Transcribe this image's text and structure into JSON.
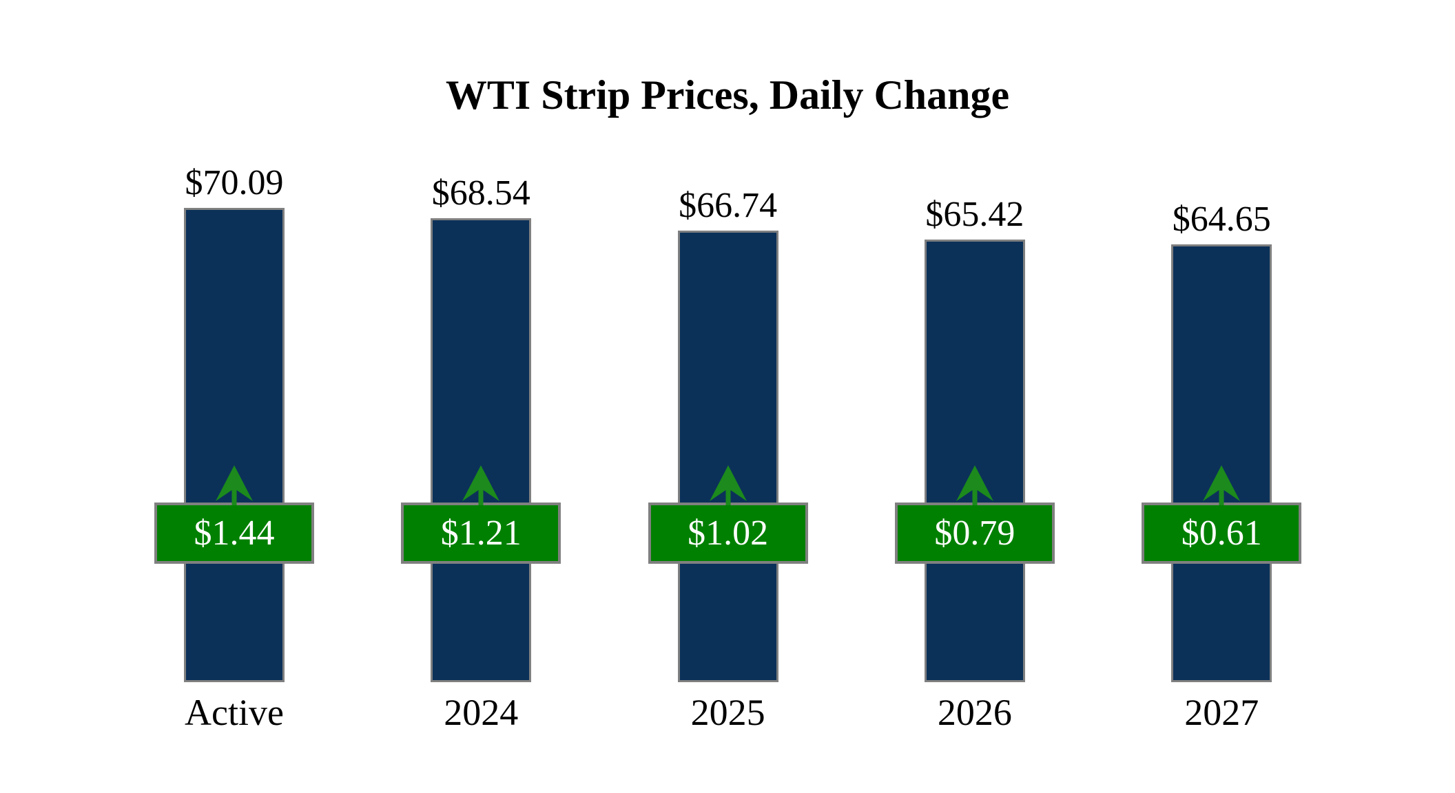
{
  "title": "WTI Strip Prices, Daily Change",
  "colors": {
    "bar_fill": "#0B3159",
    "bar_border": "#808080",
    "badge_fill": "#008000",
    "badge_border": "#808080",
    "arrow_green": "#1C8A1C",
    "label_text": "#000000",
    "badge_text": "#FFFFFF",
    "background": "#FFFFFF"
  },
  "icons": {
    "up_arrow": "increase-arrow-icon"
  },
  "chart_data": {
    "type": "bar",
    "title": "WTI Strip Prices, Daily Change",
    "categories": [
      "Active",
      "2024",
      "2025",
      "2026",
      "2027"
    ],
    "series": [
      {
        "name": "WTI Strip Price",
        "values": [
          70.09,
          68.54,
          66.74,
          65.42,
          64.65
        ],
        "labels": [
          "$70.09",
          "$68.54",
          "$66.74",
          "$65.42",
          "$64.65"
        ]
      },
      {
        "name": "Daily Change",
        "values": [
          1.44,
          1.21,
          1.02,
          0.79,
          0.61
        ],
        "labels": [
          "$1.44",
          "$1.21",
          "$1.02",
          "$0.79",
          "$0.61"
        ],
        "direction": "up"
      }
    ],
    "xlabel": "",
    "ylabel": "",
    "ylim": [
      0,
      72.5
    ],
    "grid": false,
    "legend": false,
    "axes_visible": false
  }
}
